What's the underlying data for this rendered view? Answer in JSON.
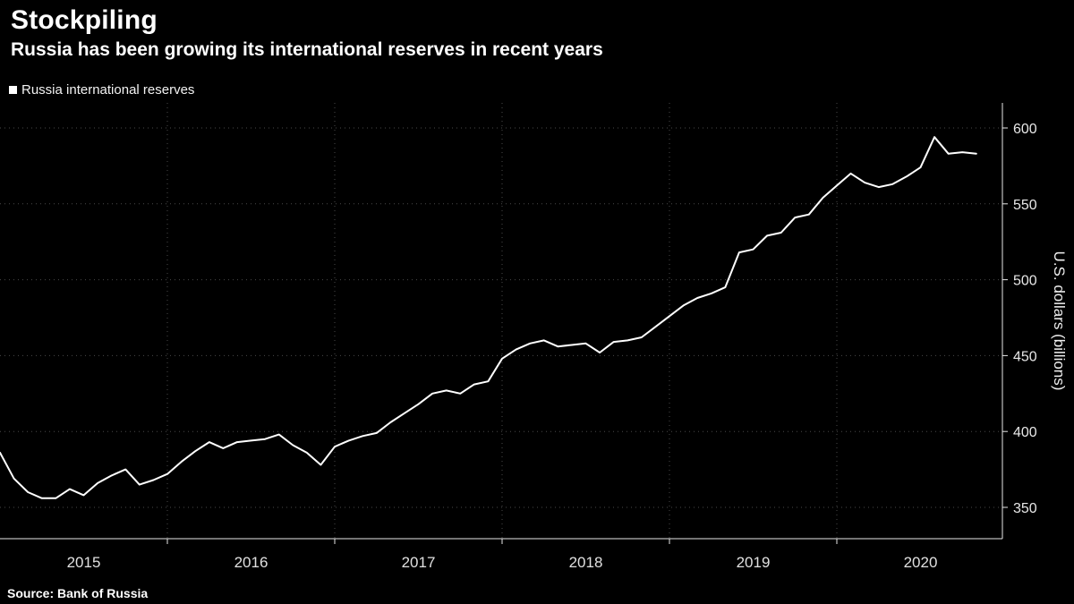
{
  "header": {
    "title": "Stockpiling",
    "subtitle": "Russia has been growing its international reserves in recent years"
  },
  "legend": {
    "label": "Russia international reserves"
  },
  "source": {
    "text": "Source: Bank of Russia"
  },
  "chart_data": {
    "type": "line",
    "title": "Stockpiling",
    "subtitle": "Russia has been growing its international reserves in recent years",
    "ylabel": "U.S. dollars (billions)",
    "y_ticks": [
      350,
      400,
      450,
      500,
      550,
      600
    ],
    "ylim": [
      330,
      615
    ],
    "x_tick_labels": [
      "2015",
      "2016",
      "2017",
      "2018",
      "2019",
      "2020"
    ],
    "x_start": "2015-01",
    "x_interval": "monthly",
    "grid": "dotted",
    "legend_position": "top-left",
    "background": "#000000",
    "line_color": "#ffffff",
    "series": [
      {
        "name": "Russia international reserves",
        "unit": "USD billions",
        "values": [
          386,
          369,
          360,
          356,
          356,
          362,
          358,
          366,
          371,
          375,
          365,
          368,
          372,
          380,
          387,
          393,
          389,
          393,
          394,
          395,
          398,
          391,
          386,
          378,
          390,
          394,
          397,
          399,
          406,
          412,
          418,
          425,
          427,
          425,
          431,
          433,
          448,
          454,
          458,
          460,
          456,
          457,
          458,
          452,
          459,
          460,
          462,
          469,
          476,
          483,
          488,
          491,
          495,
          518,
          520,
          529,
          531,
          541,
          543,
          554,
          562,
          570,
          564,
          561,
          563,
          568,
          574,
          594,
          583,
          584,
          583
        ]
      }
    ]
  }
}
